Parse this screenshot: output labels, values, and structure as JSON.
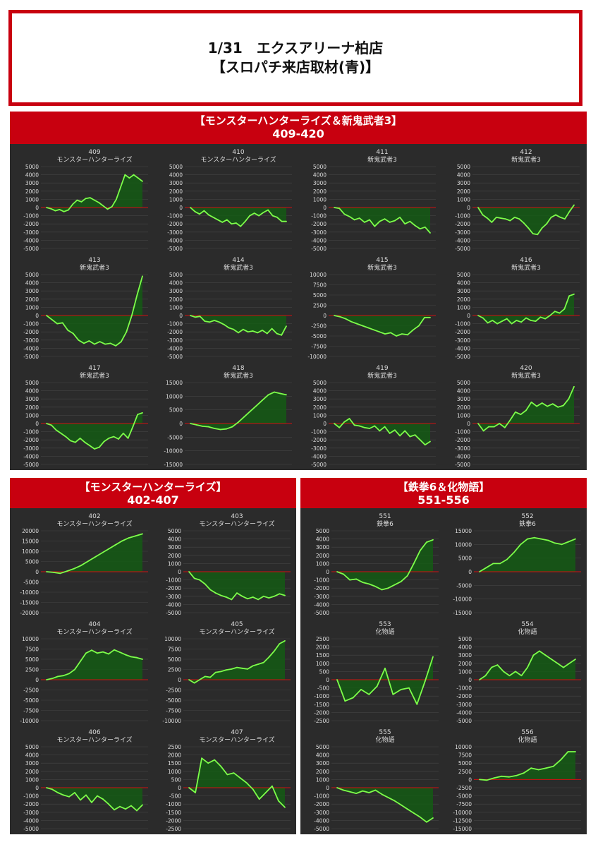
{
  "header": {
    "line1": "1/31　エクスアリーナ柏店",
    "line2": "【スロパチ来店取材(青)】"
  },
  "colors": {
    "accent": "#c8000f",
    "panel_bg": "#2b2b2b",
    "line": "#7dff4a",
    "fill": "#145a14",
    "zero": "#d01010",
    "text": "#dddddd",
    "grid": "#444444"
  },
  "sections": [
    {
      "title": "【モンスターハンターライズ＆新鬼武者3】",
      "range": "409-420"
    },
    {
      "title": "【モンスターハンターライズ】",
      "range": "402-407"
    },
    {
      "title": "【鉄拳6＆化物語】",
      "range": "551-556"
    }
  ],
  "chart_data": [
    {
      "id": "409",
      "type": "area",
      "title": "409",
      "subtitle": "モンスターハンターライズ",
      "ylim": [
        -5000,
        5000
      ],
      "ticks": [
        5000,
        4000,
        3000,
        2000,
        1000,
        0,
        -1000,
        -2000,
        -3000,
        -4000,
        -5000
      ],
      "values": [
        0,
        -150,
        -400,
        -250,
        -500,
        -300,
        400,
        900,
        700,
        1100,
        1200,
        900,
        600,
        200,
        -200,
        100,
        1000,
        2500,
        4000,
        3600,
        4000,
        3600,
        3200
      ]
    },
    {
      "id": "410",
      "type": "area",
      "title": "410",
      "subtitle": "モンスターハンターライズ",
      "ylim": [
        -5000,
        5000
      ],
      "ticks": [
        5000,
        4000,
        3000,
        2000,
        1000,
        0,
        -1000,
        -2000,
        -3000,
        -4000,
        -5000
      ],
      "values": [
        0,
        -500,
        -800,
        -400,
        -900,
        -1200,
        -1500,
        -1800,
        -1500,
        -2000,
        -1900,
        -2300,
        -1700,
        -1000,
        -700,
        -1000,
        -600,
        -300,
        -1000,
        -1200,
        -1700,
        -1700
      ]
    },
    {
      "id": "411",
      "type": "area",
      "title": "411",
      "subtitle": "新鬼武者3",
      "ylim": [
        -5000,
        5000
      ],
      "ticks": [
        5000,
        4000,
        3000,
        2000,
        1000,
        0,
        -1000,
        -2000,
        -3000,
        -4000,
        -5000
      ],
      "values": [
        0,
        -100,
        -800,
        -1100,
        -1500,
        -1300,
        -1800,
        -1500,
        -2300,
        -1700,
        -1400,
        -1800,
        -1600,
        -1200,
        -2000,
        -1700,
        -2200,
        -2600,
        -2400,
        -3100
      ]
    },
    {
      "id": "412",
      "type": "area",
      "title": "412",
      "subtitle": "新鬼武者3",
      "ylim": [
        -5000,
        5000
      ],
      "ticks": [
        5000,
        4000,
        3000,
        2000,
        1000,
        0,
        -1000,
        -2000,
        -3000,
        -4000,
        -5000
      ],
      "values": [
        0,
        -900,
        -1300,
        -1800,
        -1200,
        -1300,
        -1400,
        -1600,
        -1200,
        -1400,
        -1900,
        -2500,
        -3200,
        -3300,
        -2500,
        -2000,
        -1200,
        -900,
        -1200,
        -1400,
        -500,
        300
      ]
    },
    {
      "id": "413",
      "type": "area",
      "title": "413",
      "subtitle": "新鬼武者3",
      "ylim": [
        -5000,
        5000
      ],
      "ticks": [
        5000,
        4000,
        3000,
        2000,
        1000,
        0,
        -1000,
        -2000,
        -3000,
        -4000,
        -5000
      ],
      "values": [
        0,
        -500,
        -1000,
        -900,
        -1800,
        -2200,
        -3000,
        -3400,
        -3100,
        -3500,
        -3200,
        -3500,
        -3400,
        -3700,
        -3200,
        -2000,
        0,
        2500,
        4800
      ]
    },
    {
      "id": "414",
      "type": "area",
      "title": "414",
      "subtitle": "新鬼武者3",
      "ylim": [
        -5000,
        5000
      ],
      "ticks": [
        5000,
        4000,
        3000,
        2000,
        1000,
        0,
        -1000,
        -2000,
        -3000,
        -4000,
        -5000
      ],
      "values": [
        0,
        -200,
        -100,
        -700,
        -800,
        -600,
        -800,
        -1100,
        -1500,
        -1700,
        -2100,
        -1700,
        -2000,
        -1900,
        -2100,
        -1800,
        -2200,
        -1600,
        -2200,
        -2400,
        -1300
      ]
    },
    {
      "id": "415",
      "type": "area",
      "title": "415",
      "subtitle": "新鬼武者3",
      "ylim": [
        -10000,
        10000
      ],
      "ticks": [
        10000,
        7500,
        5000,
        2500,
        0,
        -2500,
        -5000,
        -7500,
        -10000
      ],
      "values": [
        0,
        -300,
        -800,
        -1500,
        -2000,
        -2500,
        -3000,
        -3500,
        -4000,
        -4500,
        -4200,
        -5000,
        -4500,
        -4700,
        -3500,
        -2500,
        -500,
        -500
      ]
    },
    {
      "id": "416",
      "type": "area",
      "title": "416",
      "subtitle": "新鬼武者3",
      "ylim": [
        -5000,
        5000
      ],
      "ticks": [
        5000,
        4000,
        3000,
        2000,
        1000,
        0,
        -1000,
        -2000,
        -3000,
        -4000,
        -5000
      ],
      "values": [
        0,
        -300,
        -900,
        -600,
        -1000,
        -700,
        -400,
        -1000,
        -600,
        -800,
        -300,
        -600,
        -700,
        -200,
        -400,
        0,
        500,
        300,
        800,
        2400,
        2600
      ]
    },
    {
      "id": "417",
      "type": "area",
      "title": "417",
      "subtitle": "新鬼武者3",
      "ylim": [
        -5000,
        5000
      ],
      "ticks": [
        5000,
        4000,
        3000,
        2000,
        1000,
        0,
        -1000,
        -2000,
        -3000,
        -4000,
        -5000
      ],
      "values": [
        0,
        -200,
        -800,
        -1200,
        -1600,
        -2100,
        -2300,
        -1800,
        -2300,
        -2700,
        -3100,
        -2900,
        -2200,
        -1800,
        -1600,
        -1900,
        -1200,
        -1800,
        -400,
        1100,
        1300
      ]
    },
    {
      "id": "418",
      "type": "area",
      "title": "418",
      "subtitle": "新鬼武者3",
      "ylim": [
        -15000,
        15000
      ],
      "ticks": [
        15000,
        10000,
        5000,
        0,
        -5000,
        -10000,
        -15000
      ],
      "values": [
        0,
        -500,
        -1000,
        -1200,
        -1800,
        -2200,
        -2000,
        -1200,
        500,
        2500,
        4500,
        6500,
        8500,
        10500,
        11500,
        11000,
        10500
      ]
    },
    {
      "id": "419",
      "type": "area",
      "title": "419",
      "subtitle": "新鬼武者3",
      "ylim": [
        -5000,
        5000
      ],
      "ticks": [
        5000,
        4000,
        3000,
        2000,
        1000,
        0,
        -1000,
        -2000,
        -3000,
        -4000,
        -5000
      ],
      "values": [
        0,
        -500,
        200,
        600,
        -200,
        -300,
        -500,
        -600,
        -300,
        -900,
        -400,
        -1200,
        -800,
        -1500,
        -900,
        -1600,
        -1400,
        -2000,
        -2600,
        -2200
      ]
    },
    {
      "id": "420",
      "type": "area",
      "title": "420",
      "subtitle": "新鬼武者3",
      "ylim": [
        -5000,
        5000
      ],
      "ticks": [
        5000,
        4000,
        3000,
        2000,
        1000,
        0,
        -1000,
        -2000,
        -3000,
        -4000,
        -5000
      ],
      "values": [
        0,
        -900,
        -400,
        -400,
        0,
        -500,
        400,
        1400,
        1100,
        1600,
        2600,
        2100,
        2500,
        2100,
        2400,
        2000,
        2200,
        3000,
        4500
      ]
    },
    {
      "id": "402",
      "type": "area",
      "title": "402",
      "subtitle": "モンスターハンターライズ",
      "ylim": [
        -20000,
        20000
      ],
      "ticks": [
        20000,
        15000,
        10000,
        5000,
        0,
        -5000,
        -10000,
        -15000,
        -20000
      ],
      "values": [
        0,
        -300,
        -800,
        300,
        1500,
        3000,
        5000,
        7000,
        9000,
        11000,
        13000,
        15000,
        16500,
        17500,
        18500
      ]
    },
    {
      "id": "403",
      "type": "area",
      "title": "403",
      "subtitle": "モンスターハンターライズ",
      "ylim": [
        -5000,
        5000
      ],
      "ticks": [
        5000,
        4000,
        3000,
        2000,
        1000,
        0,
        -1000,
        -2000,
        -3000,
        -4000,
        -5000
      ],
      "values": [
        0,
        -800,
        -1000,
        -1500,
        -2200,
        -2600,
        -2900,
        -3100,
        -3400,
        -2600,
        -3000,
        -3300,
        -3100,
        -3400,
        -3000,
        -3200,
        -3000,
        -2700,
        -2900
      ]
    },
    {
      "id": "404",
      "type": "area",
      "title": "404",
      "subtitle": "モンスターハンターライズ",
      "ylim": [
        -10000,
        10000
      ],
      "ticks": [
        10000,
        7500,
        5000,
        2500,
        0,
        -2500,
        -5000,
        -7500,
        -10000
      ],
      "values": [
        0,
        300,
        800,
        1000,
        1500,
        2500,
        4500,
        6500,
        7200,
        6500,
        6800,
        6300,
        7300,
        6700,
        6100,
        5600,
        5400,
        5000
      ]
    },
    {
      "id": "405",
      "type": "area",
      "title": "405",
      "subtitle": "モンスターハンターライズ",
      "ylim": [
        -10000,
        10000
      ],
      "ticks": [
        10000,
        7500,
        5000,
        2500,
        0,
        -2500,
        -5000,
        -7500,
        -10000
      ],
      "values": [
        0,
        -800,
        0,
        800,
        600,
        1800,
        2000,
        2400,
        2600,
        3000,
        2800,
        2600,
        3400,
        3800,
        4200,
        5500,
        7000,
        8800,
        9500
      ]
    },
    {
      "id": "406",
      "type": "area",
      "title": "406",
      "subtitle": "モンスターハンターライズ",
      "ylim": [
        -5000,
        5000
      ],
      "ticks": [
        5000,
        4000,
        3000,
        2000,
        1000,
        0,
        -1000,
        -2000,
        -3000,
        -4000,
        -5000
      ],
      "values": [
        0,
        -200,
        -600,
        -900,
        -1100,
        -600,
        -1500,
        -900,
        -1800,
        -1000,
        -1400,
        -2000,
        -2700,
        -2300,
        -2600,
        -2200,
        -2800,
        -2100
      ]
    },
    {
      "id": "407",
      "type": "area",
      "title": "407",
      "subtitle": "モンスターハンターライズ",
      "ylim": [
        -2500,
        2500
      ],
      "ticks": [
        2500,
        2000,
        1500,
        1000,
        500,
        0,
        -500,
        -1000,
        -1500,
        -2000,
        -2500
      ],
      "values": [
        0,
        -300,
        1800,
        1500,
        1700,
        1300,
        800,
        900,
        600,
        300,
        -100,
        -700,
        -300,
        100,
        -800,
        -1200
      ]
    },
    {
      "id": "551",
      "type": "area",
      "title": "551",
      "subtitle": "鉄拳6",
      "ylim": [
        -5000,
        5000
      ],
      "ticks": [
        5000,
        4000,
        3000,
        2000,
        1000,
        0,
        -1000,
        -2000,
        -3000,
        -4000,
        -5000
      ],
      "values": [
        0,
        -300,
        -1000,
        -900,
        -1300,
        -1500,
        -1800,
        -2200,
        -2000,
        -1600,
        -1200,
        -500,
        1000,
        2600,
        3600,
        3900
      ]
    },
    {
      "id": "552",
      "type": "area",
      "title": "552",
      "subtitle": "鉄拳6",
      "ylim": [
        -15000,
        15000
      ],
      "ticks": [
        15000,
        10000,
        5000,
        0,
        -5000,
        -10000,
        -15000
      ],
      "values": [
        0,
        1500,
        3000,
        3000,
        4500,
        7000,
        10000,
        12000,
        12500,
        12000,
        11500,
        10500,
        10000,
        11000,
        12000
      ]
    },
    {
      "id": "553",
      "type": "area",
      "title": "553",
      "subtitle": "化物語",
      "ylim": [
        -2500,
        2500
      ],
      "ticks": [
        2500,
        2000,
        1500,
        1000,
        500,
        0,
        -500,
        -1000,
        -1500,
        -2000,
        -2500
      ],
      "values": [
        0,
        -1300,
        -1100,
        -600,
        -900,
        -400,
        700,
        -900,
        -600,
        -500,
        -1500,
        -100,
        1400
      ]
    },
    {
      "id": "554",
      "type": "area",
      "title": "554",
      "subtitle": "化物語",
      "ylim": [
        -5000,
        5000
      ],
      "ticks": [
        5000,
        4000,
        3000,
        2000,
        1000,
        0,
        -1000,
        -2000,
        -3000,
        -4000,
        -5000
      ],
      "values": [
        0,
        500,
        1500,
        1800,
        1000,
        500,
        1000,
        500,
        1500,
        3000,
        3500,
        3000,
        2500,
        2000,
        1500,
        2000,
        2500
      ]
    },
    {
      "id": "555",
      "type": "area",
      "title": "555",
      "subtitle": "化物語",
      "ylim": [
        -5000,
        5000
      ],
      "ticks": [
        5000,
        4000,
        3000,
        2000,
        1000,
        0,
        -1000,
        -2000,
        -3000,
        -4000,
        -5000
      ],
      "values": [
        0,
        -300,
        -500,
        -700,
        -400,
        -600,
        -300,
        -800,
        -1200,
        -1600,
        -2100,
        -2600,
        -3100,
        -3600,
        -4200,
        -3700
      ]
    },
    {
      "id": "556",
      "type": "area",
      "title": "556",
      "subtitle": "化物語",
      "ylim": [
        -15000,
        10000
      ],
      "ticks": [
        10000,
        7500,
        5000,
        2500,
        0,
        -2500,
        -5000,
        -7500,
        -10000,
        -12500,
        -15000
      ],
      "values": [
        0,
        -200,
        500,
        1000,
        800,
        1200,
        2000,
        3500,
        3000,
        3500,
        4000,
        6000,
        8500,
        8500
      ]
    }
  ]
}
